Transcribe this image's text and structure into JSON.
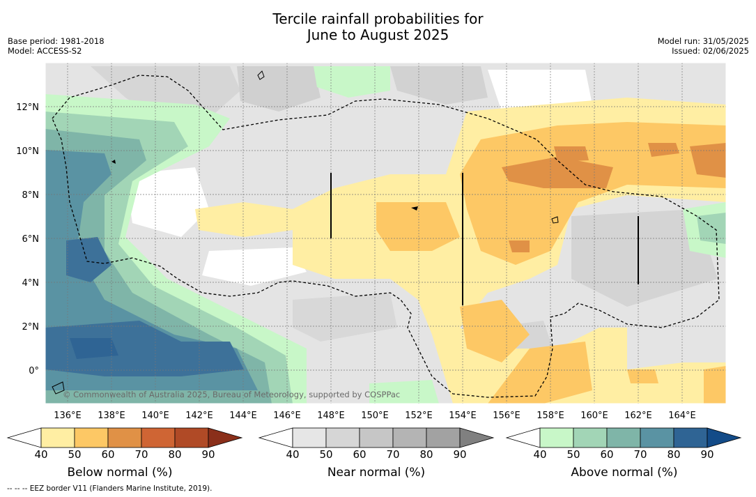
{
  "title_line1": "Tercile rainfall probabilities for",
  "title_line2": "June to August 2025",
  "meta_left": [
    "Base period: 1981-2018",
    "Model: ACCESS-S2"
  ],
  "meta_right": [
    "Model run: 31/05/2025",
    "Issued: 02/06/2025"
  ],
  "copyright": "© Commonwealth of Australia 2025, Bureau of Meteorology, supported by COSPPac",
  "footer": "--  --  -- EEZ border V11 (Flanders Marine Institute, 2019).",
  "lon_labels": [
    "136°E",
    "138°E",
    "140°E",
    "142°E",
    "144°E",
    "146°E",
    "148°E",
    "150°E",
    "152°E",
    "154°E",
    "156°E",
    "158°E",
    "160°E",
    "162°E",
    "164°E"
  ],
  "lat_labels": [
    "12°N",
    "10°N",
    "8°N",
    "6°N",
    "4°N",
    "2°N",
    "0°"
  ],
  "colorbars": [
    {
      "title": "Below normal (%)",
      "ticks": [
        "40",
        "50",
        "60",
        "70",
        "80",
        "90"
      ],
      "colors": [
        "#ffeea3",
        "#fdc865",
        "#e09146",
        "#cf6534",
        "#b04a26",
        "#8a2f1a"
      ]
    },
    {
      "title": "Near normal (%)",
      "ticks": [
        "40",
        "50",
        "60",
        "70",
        "80",
        "90"
      ],
      "colors": [
        "#e6e6e6",
        "#d6d6d6",
        "#c6c6c6",
        "#b4b4b4",
        "#a2a2a2",
        "#808080"
      ]
    },
    {
      "title": "Above normal (%)",
      "ticks": [
        "40",
        "50",
        "60",
        "70",
        "80",
        "90"
      ],
      "colors": [
        "#c8f7c8",
        "#a2d5b6",
        "#7fb5a8",
        "#5a93a3",
        "#2f6494",
        "#134b88"
      ]
    }
  ]
}
